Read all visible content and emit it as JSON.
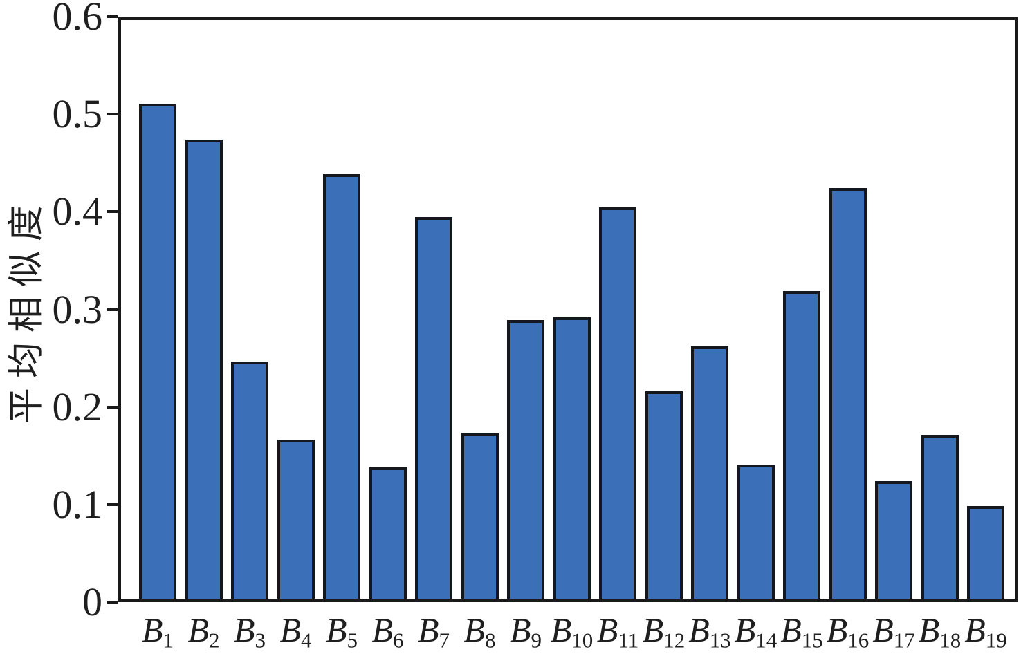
{
  "chart_data": {
    "type": "bar",
    "categories": [
      "B1",
      "B2",
      "B3",
      "B4",
      "B5",
      "B6",
      "B7",
      "B8",
      "B9",
      "B10",
      "B11",
      "B12",
      "B13",
      "B14",
      "B15",
      "B16",
      "B17",
      "B18",
      "B19"
    ],
    "values": [
      0.513,
      0.476,
      0.246,
      0.165,
      0.44,
      0.136,
      0.396,
      0.172,
      0.289,
      0.292,
      0.406,
      0.215,
      0.262,
      0.139,
      0.319,
      0.426,
      0.122,
      0.17,
      0.096
    ],
    "title": "",
    "xlabel": "",
    "ylabel": "平均相似度",
    "ylim": [
      0,
      0.6
    ],
    "yticks": [
      0,
      0.1,
      0.2,
      0.3,
      0.4,
      0.5,
      0.6
    ],
    "ytick_labels": [
      "0",
      "0.1",
      "0.2",
      "0.3",
      "0.4",
      "0.5",
      "0.6"
    ],
    "grid": false,
    "legend_position": "none",
    "bar_color": "#3B70B8",
    "bar_edge_color": "#14171d",
    "axis_color": "#1a1a1a"
  }
}
